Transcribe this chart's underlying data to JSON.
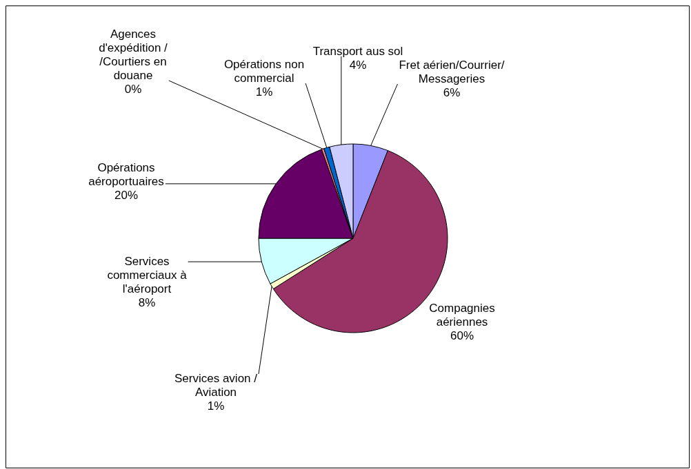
{
  "chart_data": {
    "type": "pie",
    "categories": [
      "Fret aérien/Courrier/ Messageries",
      "Compagnies aériennes",
      "Services avion / Aviation",
      "Services commerciaux à l'aéroport",
      "Opérations aéroportuaires",
      "Agences d'expédition / /Courtiers en douane",
      "Opérations non commercial",
      "Transport aus sol"
    ],
    "values": [
      6,
      60,
      1,
      8,
      19.6,
      0.4,
      1,
      4
    ],
    "colors": [
      "#9999ff",
      "#993366",
      "#ffffcc",
      "#ccffff",
      "#660066",
      "#ff8080",
      "#0066cc",
      "#ccccff"
    ],
    "value_labels": [
      "6%",
      "60%",
      "1%",
      "8%",
      "20%",
      "0%",
      "1%",
      "4%"
    ]
  }
}
